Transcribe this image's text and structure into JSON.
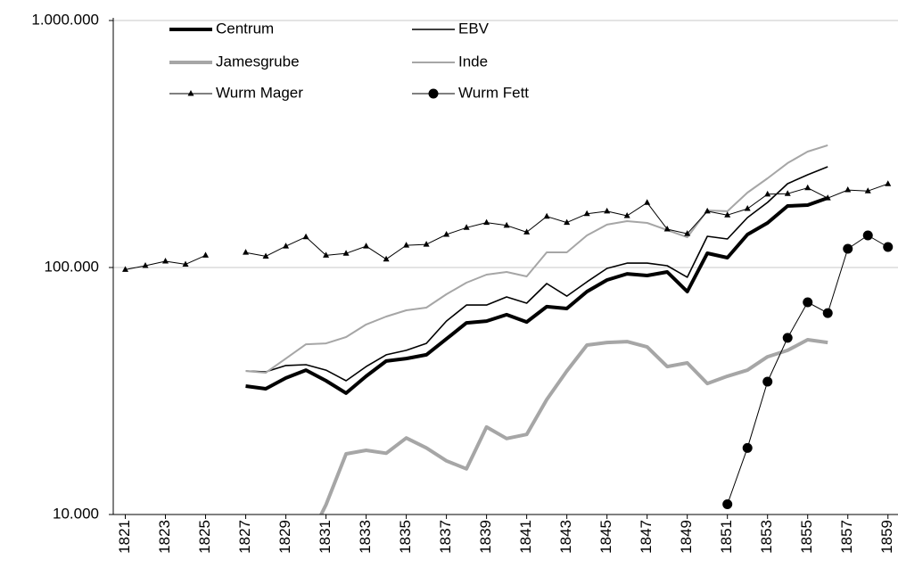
{
  "chart_data": {
    "type": "line",
    "x": [
      1821,
      1822,
      1823,
      1824,
      1825,
      1826,
      1827,
      1828,
      1829,
      1830,
      1831,
      1832,
      1833,
      1834,
      1835,
      1836,
      1837,
      1838,
      1839,
      1840,
      1841,
      1842,
      1843,
      1844,
      1845,
      1846,
      1847,
      1848,
      1849,
      1850,
      1851,
      1852,
      1853,
      1854,
      1855,
      1856,
      1857,
      1858,
      1859
    ],
    "xlim": [
      1820.4,
      1859.5
    ],
    "xticks": [
      1821,
      1823,
      1825,
      1827,
      1829,
      1831,
      1833,
      1835,
      1837,
      1839,
      1841,
      1843,
      1845,
      1847,
      1849,
      1851,
      1853,
      1855,
      1857,
      1859
    ],
    "ylim": [
      10000,
      1000000
    ],
    "log_scale": true,
    "grid": true,
    "yticks": [
      {
        "value": 10000,
        "label": "10.000"
      },
      {
        "value": 100000,
        "label": "100.000"
      },
      {
        "value": 1000000,
        "label": "1.000.000"
      }
    ],
    "series": [
      {
        "name": "Centrum",
        "color": "#000000",
        "line_width": 4,
        "marker": "none",
        "values": [
          null,
          null,
          null,
          null,
          null,
          null,
          33100,
          32300,
          35700,
          38400,
          34800,
          31000,
          36300,
          41800,
          42800,
          44300,
          51400,
          59700,
          60700,
          64400,
          60200,
          69400,
          68200,
          79900,
          89000,
          94300,
          92800,
          95900,
          79900,
          114200,
          109600,
          136000,
          151500,
          177500,
          179000,
          191300,
          null,
          null,
          null
        ]
      },
      {
        "name": "EBV",
        "color": "#000000",
        "line_width": 1.6,
        "marker": "none",
        "values": [
          null,
          null,
          null,
          null,
          null,
          null,
          38100,
          37800,
          40100,
          40400,
          38400,
          34800,
          39700,
          44300,
          46200,
          49300,
          60700,
          70500,
          70500,
          76000,
          71700,
          86100,
          76600,
          87500,
          99200,
          104200,
          104200,
          101700,
          91300,
          133800,
          130500,
          159300,
          183400,
          218500,
          237300,
          255800,
          null,
          null,
          null
        ]
      },
      {
        "name": "Jamesgrube",
        "color": "#a6a6a6",
        "line_width": 4,
        "marker": "none",
        "values": [
          null,
          null,
          null,
          null,
          null,
          null,
          null,
          null,
          null,
          7500,
          10960,
          17600,
          18200,
          17700,
          20400,
          18600,
          16500,
          15300,
          22600,
          20300,
          21100,
          29200,
          38100,
          48500,
          49700,
          50100,
          47700,
          39700,
          41100,
          33900,
          36300,
          38400,
          43500,
          46200,
          51000,
          49700,
          null,
          null,
          null
        ]
      },
      {
        "name": "Inde",
        "color": "#a6a6a6",
        "line_width": 2,
        "marker": "none",
        "values": [
          null,
          null,
          null,
          null,
          null,
          null,
          38100,
          37500,
          42800,
          48900,
          49300,
          52300,
          58800,
          63300,
          67100,
          68800,
          77900,
          86800,
          93600,
          95900,
          92000,
          115200,
          115200,
          134900,
          149100,
          154100,
          151500,
          141800,
          132600,
          170200,
          168900,
          201100,
          229700,
          264600,
          294700,
          312500,
          null,
          null,
          null
        ]
      },
      {
        "name": "Wurm Mager",
        "color": "#000000",
        "line_width": 1,
        "marker": "triangle",
        "values": [
          98000,
          101700,
          106000,
          103000,
          112000,
          null,
          115000,
          111000,
          122000,
          133000,
          112000,
          114000,
          122000,
          108000,
          123000,
          124000,
          136000,
          145000,
          152000,
          148000,
          139000,
          161000,
          152000,
          165000,
          169000,
          162000,
          183000,
          143000,
          137000,
          169000,
          163000,
          173000,
          198000,
          199000,
          210000,
          191000,
          206000,
          204000,
          218000
        ]
      },
      {
        "name": "Wurm Fett",
        "color": "#000000",
        "line_width": 1,
        "marker": "circle",
        "values": [
          null,
          null,
          null,
          null,
          null,
          null,
          null,
          null,
          null,
          null,
          null,
          null,
          null,
          null,
          null,
          null,
          null,
          null,
          null,
          null,
          null,
          null,
          null,
          null,
          null,
          null,
          null,
          null,
          null,
          null,
          11000,
          18600,
          34500,
          51900,
          72300,
          65400,
          119100,
          134900,
          121100
        ]
      }
    ]
  }
}
